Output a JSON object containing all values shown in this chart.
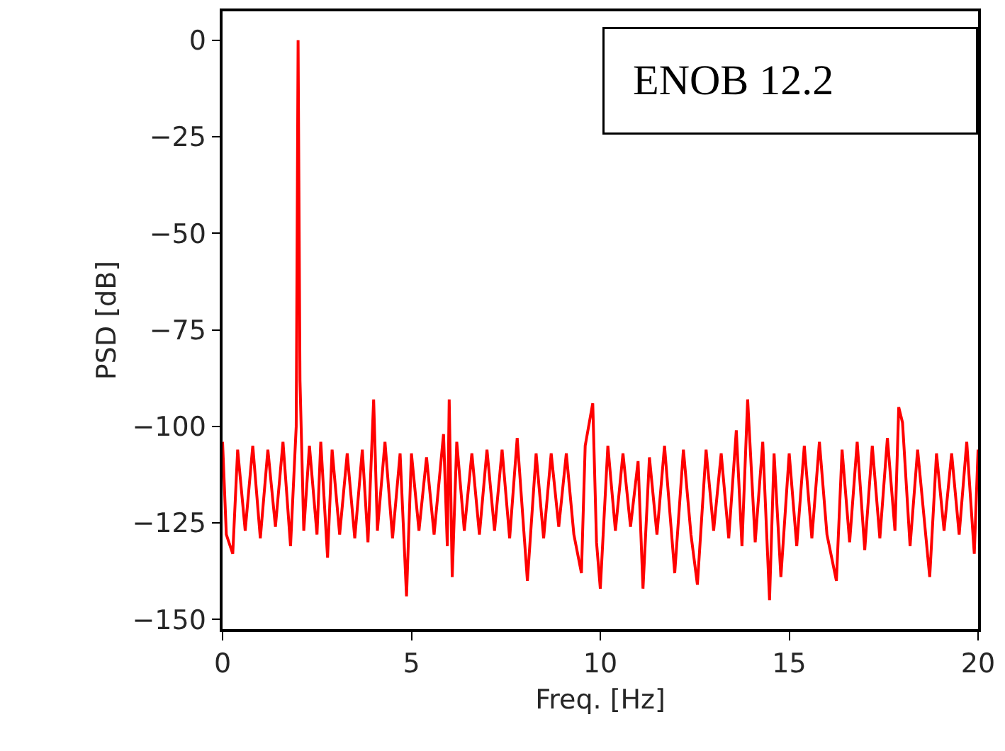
{
  "chart_data": {
    "type": "line",
    "xlabel": "Freq. [Hz]",
    "ylabel": "PSD [dB]",
    "annotations": [
      "ENOB 12.2"
    ],
    "x": [
      0.0,
      0.1,
      0.27,
      0.4,
      0.6,
      0.8,
      1.0,
      1.2,
      1.4,
      1.6,
      1.8,
      1.95,
      2.0,
      2.05,
      2.15,
      2.3,
      2.5,
      2.6,
      2.78,
      2.9,
      3.1,
      3.3,
      3.5,
      3.7,
      3.85,
      4.0,
      4.1,
      4.3,
      4.5,
      4.7,
      4.87,
      5.0,
      5.2,
      5.4,
      5.6,
      5.85,
      5.95,
      6.0,
      6.08,
      6.2,
      6.4,
      6.6,
      6.8,
      7.0,
      7.2,
      7.4,
      7.6,
      7.8,
      8.07,
      8.3,
      8.5,
      8.7,
      8.9,
      9.1,
      9.3,
      9.5,
      9.6,
      9.8,
      9.9,
      10.0,
      10.2,
      10.4,
      10.6,
      10.8,
      11.0,
      11.13,
      11.3,
      11.5,
      11.7,
      11.97,
      12.2,
      12.4,
      12.57,
      12.8,
      13.0,
      13.2,
      13.4,
      13.6,
      13.75,
      13.9,
      14.1,
      14.3,
      14.48,
      14.6,
      14.78,
      15.0,
      15.2,
      15.4,
      15.6,
      15.8,
      16.0,
      16.25,
      16.4,
      16.6,
      16.8,
      17.0,
      17.2,
      17.4,
      17.6,
      17.8,
      17.9,
      18.0,
      18.2,
      18.4,
      18.72,
      18.9,
      19.1,
      19.3,
      19.5,
      19.7,
      19.9,
      20.0
    ],
    "series": [
      {
        "color": "#ff0000",
        "values": [
          -104,
          -128,
          -133,
          -106,
          -127,
          -105,
          -129,
          -106,
          -126,
          -104,
          -131,
          -100,
          0,
          -88,
          -127,
          -105,
          -128,
          -104,
          -134,
          -106,
          -128,
          -107,
          -129,
          -106,
          -130,
          -93,
          -127,
          -104,
          -129,
          -107,
          -144,
          -107,
          -127,
          -108,
          -128,
          -102,
          -131,
          -93,
          -139,
          -104,
          -127,
          -107,
          -128,
          -106,
          -127,
          -106,
          -129,
          -103,
          -140,
          -107,
          -129,
          -107,
          -126,
          -107,
          -128,
          -138,
          -105,
          -94,
          -130,
          -142,
          -105,
          -127,
          -107,
          -126,
          -109,
          -142,
          -108,
          -128,
          -105,
          -138,
          -106,
          -128,
          -141,
          -106,
          -127,
          -107,
          -129,
          -101,
          -131,
          -93,
          -130,
          -104,
          -145,
          -107,
          -139,
          -107,
          -131,
          -105,
          -129,
          -104,
          -128,
          -140,
          -106,
          -130,
          -104,
          -132,
          -105,
          -129,
          -103,
          -127,
          -95,
          -99,
          -131,
          -106,
          -139,
          -107,
          -127,
          -107,
          -128,
          -104,
          -133,
          -106
        ]
      }
    ],
    "xlim": [
      0,
      20
    ],
    "xticks": [
      0,
      5,
      10,
      15,
      20
    ],
    "ylim": [
      -152.5,
      7.5
    ],
    "yticks": [
      {
        "value": 0,
        "label": "0"
      },
      {
        "value": -25,
        "label": "−25"
      },
      {
        "value": -50,
        "label": "−50"
      },
      {
        "value": -75,
        "label": "−75"
      },
      {
        "value": -100,
        "label": "−100"
      },
      {
        "value": -125,
        "label": "−125"
      },
      {
        "value": -150,
        "label": "−150"
      }
    ]
  }
}
